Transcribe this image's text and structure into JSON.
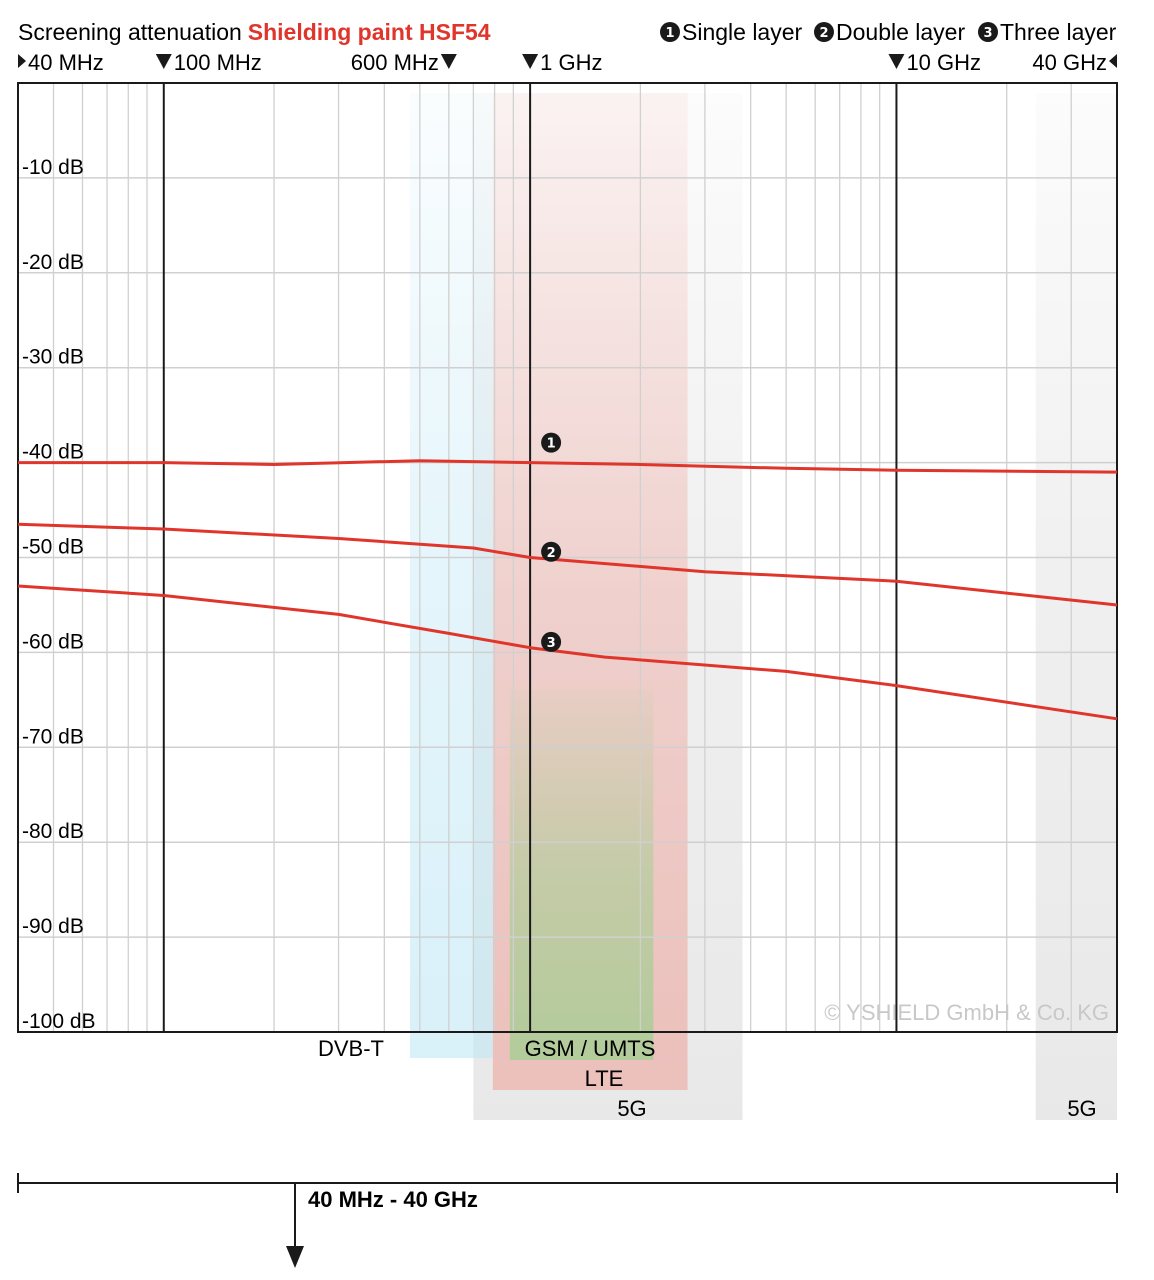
{
  "title": {
    "prefix": "Screening attenuation",
    "brand": "Shielding paint HSF54"
  },
  "legend": [
    {
      "symbol": "1",
      "label": "Single layer"
    },
    {
      "symbol": "2",
      "label": "Double layer"
    },
    {
      "symbol": "3",
      "label": "Three layer"
    }
  ],
  "freq_labels": [
    {
      "text": "40 MHz",
      "freq_mhz": 40
    },
    {
      "text": "100 MHz",
      "freq_mhz": 100
    },
    {
      "text": "600 MHz",
      "freq_mhz": 600
    },
    {
      "text": "1 GHz",
      "freq_mhz": 1000
    },
    {
      "text": "10 GHz",
      "freq_mhz": 10000
    },
    {
      "text": "40 GHz",
      "freq_mhz": 40000
    }
  ],
  "bands": [
    {
      "label": "DVB-T",
      "from_mhz": 470,
      "to_mhz": 790,
      "color": "#bfe7f5"
    },
    {
      "label": "GSM / UMTS",
      "from_mhz": 880,
      "to_mhz": 2170,
      "color": "#9fcf8f"
    },
    {
      "label": "LTE",
      "from_mhz": 791,
      "to_mhz": 2690,
      "color": "#ef8d82"
    },
    {
      "label": "5G",
      "from_mhz": 700,
      "to_mhz": 3800,
      "color": "#d6d6d6"
    },
    {
      "label": "5G",
      "from_mhz": 24000,
      "to_mhz": 40000,
      "color": "#d6d6d6"
    }
  ],
  "range_label": "40 MHz - 40 GHz",
  "copyright": "© YSHIELD GmbH & Co. KG",
  "colors": {
    "curve": "#e0352b",
    "grid": "#d0d0d0",
    "decade": "#1a1a1a",
    "brand": "#e0352b"
  },
  "chart_data": {
    "type": "line",
    "title": "Screening attenuation Shielding paint HSF54",
    "xlabel": "",
    "ylabel": "",
    "xscale": "log",
    "xlim_mhz": [
      40,
      40000
    ],
    "ylim_db": [
      -100,
      0
    ],
    "yticks": [
      {
        "value": -10,
        "label": "-10 dB"
      },
      {
        "value": -20,
        "label": "-20 dB"
      },
      {
        "value": -30,
        "label": "-30 dB"
      },
      {
        "value": -40,
        "label": "-40 dB"
      },
      {
        "value": -50,
        "label": "-50 dB"
      },
      {
        "value": -60,
        "label": "-60 dB"
      },
      {
        "value": -70,
        "label": "-70 dB"
      },
      {
        "value": -80,
        "label": "-80 dB"
      },
      {
        "value": -90,
        "label": "-90 dB"
      },
      {
        "value": -100,
        "label": "-100 dB"
      }
    ],
    "grid": true,
    "legend_position": "top-right",
    "series": [
      {
        "name": "Single layer",
        "marker": "1",
        "points": [
          [
            40,
            -40.0
          ],
          [
            100,
            -40.0
          ],
          [
            200,
            -40.2
          ],
          [
            500,
            -39.8
          ],
          [
            1000,
            -40.0
          ],
          [
            2000,
            -40.2
          ],
          [
            5000,
            -40.6
          ],
          [
            10000,
            -40.8
          ],
          [
            40000,
            -41.0
          ]
        ]
      },
      {
        "name": "Double layer",
        "marker": "2",
        "points": [
          [
            40,
            -46.5
          ],
          [
            100,
            -47.0
          ],
          [
            300,
            -48.0
          ],
          [
            700,
            -49.0
          ],
          [
            1000,
            -50.0
          ],
          [
            3000,
            -51.5
          ],
          [
            10000,
            -52.5
          ],
          [
            40000,
            -55.0
          ]
        ]
      },
      {
        "name": "Three layer",
        "marker": "3",
        "points": [
          [
            40,
            -53.0
          ],
          [
            100,
            -54.0
          ],
          [
            300,
            -56.0
          ],
          [
            600,
            -58.0
          ],
          [
            1000,
            -59.5
          ],
          [
            1600,
            -60.5
          ],
          [
            5000,
            -62.0
          ],
          [
            10000,
            -63.5
          ],
          [
            40000,
            -67.0
          ]
        ]
      }
    ]
  }
}
